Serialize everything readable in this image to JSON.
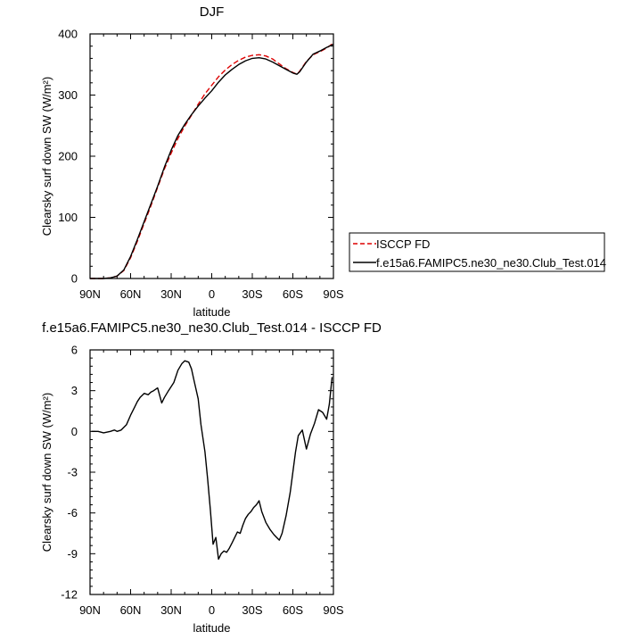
{
  "chart_data": [
    {
      "type": "line",
      "title": "DJF",
      "xlabel": "latitude",
      "ylabel": "Clearsky surf down SW (W/m²)",
      "xlim": [
        90,
        -90
      ],
      "ylim": [
        0,
        400
      ],
      "x_ticks": [
        90,
        60,
        30,
        0,
        -30,
        -60,
        -90
      ],
      "x_tick_labels": [
        "90N",
        "60N",
        "30N",
        "0",
        "30S",
        "60S",
        "90S"
      ],
      "y_ticks": [
        0,
        100,
        200,
        300,
        400
      ],
      "y_tick_labels": [
        "0",
        "100",
        "200",
        "300",
        "400"
      ],
      "legend_position": "outside-right",
      "series": [
        {
          "name": "ISCCP FD",
          "color": "#dd0000",
          "dash": "dashed",
          "x": [
            90,
            85,
            80,
            75,
            70,
            65,
            60,
            55,
            50,
            45,
            40,
            35,
            30,
            25,
            20,
            15,
            10,
            5,
            0,
            -5,
            -10,
            -15,
            -20,
            -25,
            -30,
            -35,
            -40,
            -45,
            -50,
            -55,
            -60,
            -63,
            -65,
            -70,
            -75,
            -80,
            -85,
            -90
          ],
          "y": [
            0,
            0,
            0,
            1,
            4,
            13,
            34,
            61,
            90,
            119,
            149,
            179,
            205,
            229,
            249,
            267,
            285,
            302,
            316,
            330,
            341,
            350,
            357,
            362,
            365,
            366,
            364,
            359,
            351,
            343,
            337,
            334,
            339,
            355,
            366,
            371,
            377,
            385
          ]
        },
        {
          "name": "f.e15a6.FAMIPC5.ne30_ne30.Club_Test.014",
          "color": "#000000",
          "dash": "solid",
          "x": [
            90,
            85,
            80,
            75,
            70,
            65,
            60,
            55,
            50,
            45,
            40,
            35,
            30,
            25,
            20,
            15,
            10,
            5,
            0,
            -5,
            -10,
            -15,
            -20,
            -25,
            -30,
            -35,
            -40,
            -45,
            -50,
            -55,
            -60,
            -63,
            -65,
            -70,
            -75,
            -80,
            -85,
            -90
          ],
          "y": [
            0,
            0,
            0,
            1,
            4,
            14,
            36,
            64,
            93,
            122,
            151,
            182,
            210,
            234,
            252,
            268,
            282,
            295,
            307,
            321,
            333,
            342,
            350,
            356,
            360,
            361,
            359,
            354,
            348,
            342,
            336,
            334,
            338,
            354,
            367,
            372,
            378,
            383
          ]
        }
      ]
    },
    {
      "type": "line",
      "title": "f.e15a6.FAMIPC5.ne30_ne30.Club_Test.014 - ISCCP FD",
      "xlabel": "latitude",
      "ylabel": "Clearsky surf down SW (W/m²)",
      "xlim": [
        90,
        -90
      ],
      "ylim": [
        -12,
        6
      ],
      "x_ticks": [
        90,
        60,
        30,
        0,
        -30,
        -60,
        -90
      ],
      "x_tick_labels": [
        "90N",
        "60N",
        "30N",
        "0",
        "30S",
        "60S",
        "90S"
      ],
      "y_ticks": [
        -12,
        -9,
        -6,
        -3,
        0,
        3,
        6
      ],
      "y_tick_labels": [
        "-12",
        "-9",
        "-6",
        "-3",
        "0",
        "3",
        "6"
      ],
      "series": [
        {
          "color": "#000000",
          "dash": "solid",
          "x": [
            89,
            84,
            80,
            75,
            72,
            70,
            67,
            63,
            60,
            57,
            55,
            53,
            50,
            47,
            45,
            43,
            40,
            37,
            35,
            32,
            30,
            28,
            25,
            22,
            20,
            17,
            15,
            13,
            10,
            8,
            5,
            3,
            1,
            -1,
            -3,
            -5,
            -7,
            -9,
            -11,
            -13,
            -15,
            -17,
            -19,
            -21,
            -23,
            -25,
            -27,
            -29,
            -31,
            -33,
            -35,
            -37,
            -40,
            -43,
            -46,
            -48,
            -50,
            -52,
            -55,
            -58,
            -60,
            -62,
            -64,
            -67,
            -70,
            -73,
            -76,
            -79,
            -82,
            -85,
            -87,
            -89
          ],
          "y": [
            0.0,
            0.0,
            -0.1,
            0.0,
            0.1,
            0.0,
            0.1,
            0.5,
            1.2,
            1.8,
            2.2,
            2.5,
            2.8,
            2.7,
            2.9,
            3.0,
            3.2,
            2.1,
            2.5,
            3.0,
            3.3,
            3.6,
            4.5,
            5.0,
            5.2,
            5.1,
            4.6,
            3.7,
            2.4,
            0.5,
            -1.5,
            -3.5,
            -5.8,
            -8.3,
            -7.8,
            -9.4,
            -9.0,
            -8.8,
            -8.9,
            -8.6,
            -8.2,
            -7.8,
            -7.4,
            -7.5,
            -6.9,
            -6.4,
            -6.1,
            -5.9,
            -5.6,
            -5.4,
            -5.1,
            -5.9,
            -6.7,
            -7.2,
            -7.6,
            -7.8,
            -8.0,
            -7.5,
            -6.2,
            -4.5,
            -3.0,
            -1.5,
            -0.3,
            0.1,
            -1.3,
            -0.2,
            0.6,
            1.6,
            1.4,
            0.9,
            2.0,
            4.0
          ]
        }
      ]
    }
  ]
}
